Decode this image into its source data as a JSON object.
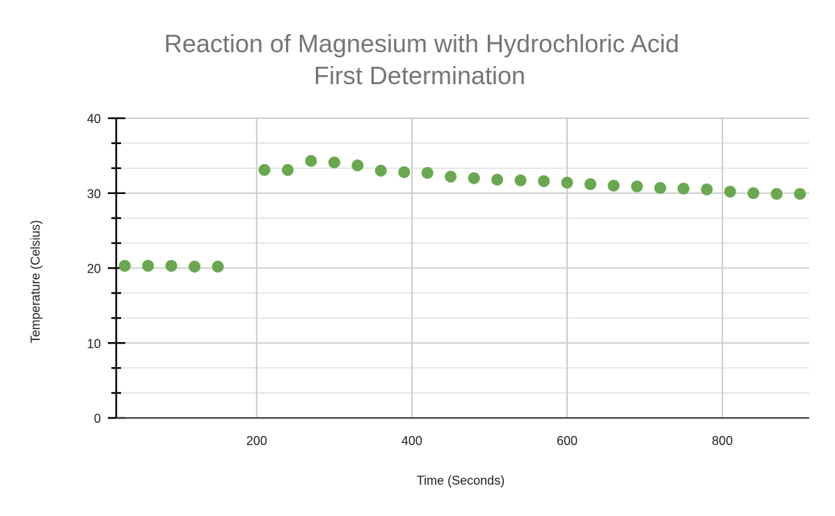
{
  "chart_data": {
    "type": "scatter",
    "title": "Reaction of Magnesium with Hydrochloric Acid",
    "subtitle": "First Determination",
    "xlabel": "Time (Seconds)",
    "ylabel": "Temperature (Celsius)",
    "xlim": [
      19,
      912
    ],
    "ylim": [
      0,
      40
    ],
    "xticks": [
      200,
      400,
      600,
      800
    ],
    "yticks": [
      0,
      10,
      20,
      30,
      40
    ],
    "grid": true,
    "legend": "none",
    "color": "#6aa84f",
    "x": [
      30,
      60,
      90,
      120,
      150,
      210,
      240,
      270,
      300,
      330,
      360,
      390,
      420,
      450,
      480,
      510,
      540,
      570,
      600,
      630,
      660,
      690,
      720,
      750,
      780,
      810,
      840,
      870,
      900
    ],
    "y": [
      20.3,
      20.3,
      20.3,
      20.2,
      20.2,
      33.1,
      33.1,
      34.3,
      34.1,
      33.7,
      33.0,
      32.8,
      32.7,
      32.2,
      32.0,
      31.8,
      31.7,
      31.6,
      31.4,
      31.2,
      31.0,
      30.9,
      30.7,
      30.6,
      30.5,
      30.2,
      30.0,
      29.9,
      29.9
    ]
  }
}
